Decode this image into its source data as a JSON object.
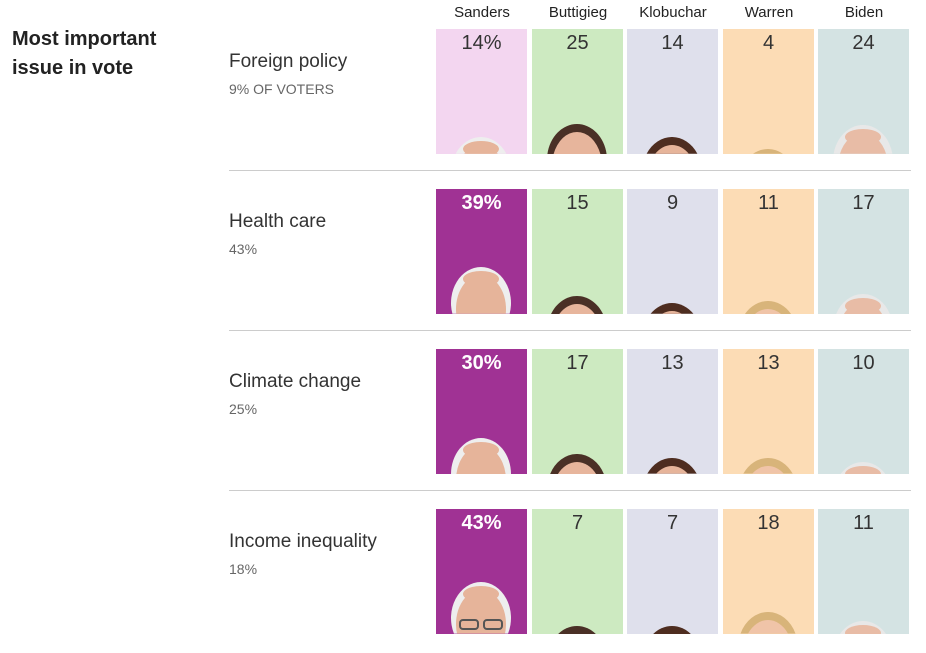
{
  "title": "Most important issue in vote",
  "candidates": [
    "Sanders",
    "Buttigieg",
    "Klobuchar",
    "Warren",
    "Biden"
  ],
  "colors": {
    "light": [
      "#f3d6f0",
      "#cdeac1",
      "#dfe0ec",
      "#fcdcb5",
      "#d4e3e3"
    ],
    "winner": "#a03294",
    "hair": [
      "#eeeeee",
      "#4a3026",
      "#4e2d20",
      "#d8b47a",
      "#e8e8e8"
    ],
    "skin": [
      "#e6b49a",
      "#e7b59c",
      "#e6b49a",
      "#f0c4a8",
      "#e8bca6"
    ]
  },
  "chart_data": {
    "type": "table",
    "title": "Most important issue in vote",
    "columns": [
      "Sanders",
      "Buttigieg",
      "Klobuchar",
      "Warren",
      "Biden"
    ],
    "rows": [
      {
        "label": "Foreign policy",
        "share": "9% OF VOTERS",
        "values": [
          14,
          25,
          14,
          4,
          24
        ],
        "display": [
          "14%",
          "25",
          "14",
          "4",
          "24"
        ],
        "winner": null
      },
      {
        "label": "Health care",
        "share": "43%",
        "values": [
          39,
          15,
          9,
          11,
          17
        ],
        "display": [
          "39%",
          "15",
          "9",
          "11",
          "17"
        ],
        "winner": 0
      },
      {
        "label": "Climate change",
        "share": "25%",
        "values": [
          30,
          17,
          13,
          13,
          10
        ],
        "display": [
          "30%",
          "17",
          "13",
          "13",
          "10"
        ],
        "winner": 0
      },
      {
        "label": "Income inequality",
        "share": "18%",
        "values": [
          43,
          7,
          7,
          18,
          11
        ],
        "display": [
          "43%",
          "7",
          "7",
          "18",
          "11"
        ],
        "winner": 0
      }
    ]
  }
}
